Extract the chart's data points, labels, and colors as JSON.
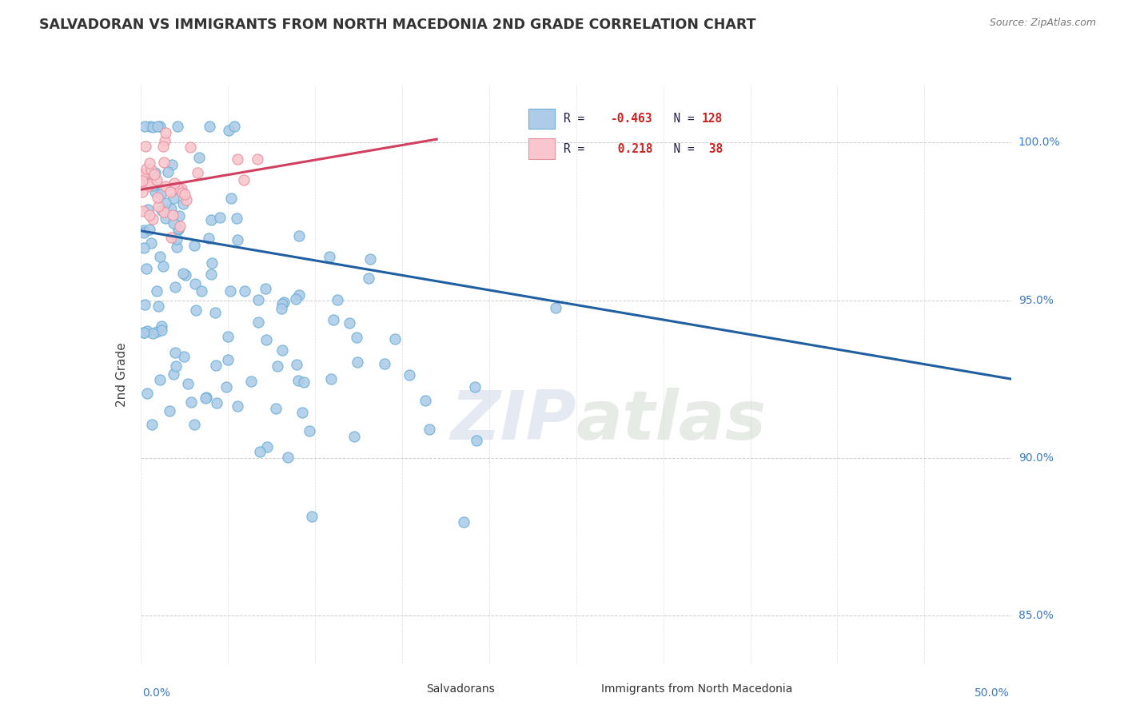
{
  "title": "SALVADORAN VS IMMIGRANTS FROM NORTH MACEDONIA 2ND GRADE CORRELATION CHART",
  "source": "Source: ZipAtlas.com",
  "ylabel": "2nd Grade",
  "ytick_vals": [
    85.0,
    90.0,
    95.0,
    100.0
  ],
  "ytick_labels": [
    "85.0%",
    "90.0%",
    "95.0%",
    "100.0%"
  ],
  "xmin": 0.0,
  "xmax": 50.0,
  "ymin": 83.5,
  "ymax": 101.8,
  "blue_R": -0.463,
  "blue_N": 128,
  "pink_R": 0.218,
  "pink_N": 38,
  "blue_color": "#aecce8",
  "blue_edge": "#6aaed6",
  "pink_color": "#f9c6cf",
  "pink_edge": "#e8909a",
  "blue_line_color": "#2060a0",
  "pink_line_color": "#d04060",
  "watermark": "ZIPatlas",
  "blue_line_x0": 0.0,
  "blue_line_y0": 97.2,
  "blue_line_x1": 50.0,
  "blue_line_y1": 92.5,
  "pink_line_x0": 0.0,
  "pink_line_y0": 98.5,
  "pink_line_x1": 17.0,
  "pink_line_y1": 100.1
}
